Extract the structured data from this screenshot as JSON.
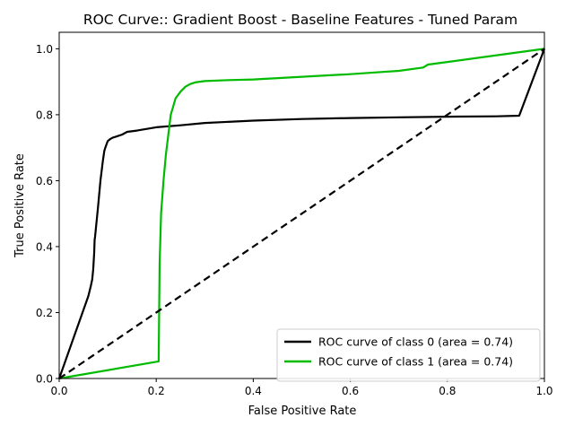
{
  "chart_data": {
    "type": "line",
    "title": "ROC Curve:: Gradient Boost - Baseline Features - Tuned Param",
    "xlabel": "False Positive Rate",
    "ylabel": "True Positive Rate",
    "xlim": [
      0.0,
      1.0
    ],
    "ylim": [
      0.0,
      1.05
    ],
    "xticks": [
      "0.0",
      "0.2",
      "0.4",
      "0.6",
      "0.8",
      "1.0"
    ],
    "yticks": [
      "0.0",
      "0.2",
      "0.4",
      "0.6",
      "0.8",
      "1.0"
    ],
    "grid": false,
    "legend_position": "lower-right",
    "series": [
      {
        "name": "ROC curve of class 0 (area = 0.74)",
        "color": "#000000",
        "style": "solid",
        "x": [
          0.0,
          0.06,
          0.065,
          0.068,
          0.07,
          0.072,
          0.073,
          0.074,
          0.08,
          0.085,
          0.09,
          0.093,
          0.095,
          0.1,
          0.105,
          0.11,
          0.12,
          0.13,
          0.14,
          0.16,
          0.2,
          0.25,
          0.3,
          0.4,
          0.5,
          0.6,
          0.7,
          0.8,
          0.9,
          0.948,
          1.0
        ],
        "y": [
          0.0,
          0.25,
          0.28,
          0.3,
          0.33,
          0.38,
          0.42,
          0.43,
          0.52,
          0.6,
          0.66,
          0.69,
          0.7,
          0.72,
          0.726,
          0.73,
          0.735,
          0.74,
          0.748,
          0.752,
          0.762,
          0.768,
          0.775,
          0.782,
          0.787,
          0.79,
          0.792,
          0.794,
          0.795,
          0.797,
          1.0
        ]
      },
      {
        "name": "ROC curve of class 1 (area = 0.74)",
        "color": "#00bb00",
        "style": "solid",
        "x": [
          0.0,
          0.205,
          0.207,
          0.21,
          0.215,
          0.22,
          0.225,
          0.23,
          0.24,
          0.25,
          0.26,
          0.27,
          0.28,
          0.3,
          0.35,
          0.4,
          0.5,
          0.6,
          0.65,
          0.7,
          0.75,
          0.76,
          0.8,
          1.0
        ],
        "y": [
          0.0,
          0.052,
          0.35,
          0.5,
          0.6,
          0.68,
          0.74,
          0.8,
          0.85,
          0.87,
          0.885,
          0.893,
          0.898,
          0.902,
          0.905,
          0.907,
          0.915,
          0.923,
          0.928,
          0.933,
          0.943,
          0.952,
          0.96,
          1.0
        ]
      },
      {
        "name": "",
        "color": "#000000",
        "style": "dashed",
        "x": [
          0.0,
          1.0
        ],
        "y": [
          0.0,
          1.0
        ]
      }
    ]
  }
}
